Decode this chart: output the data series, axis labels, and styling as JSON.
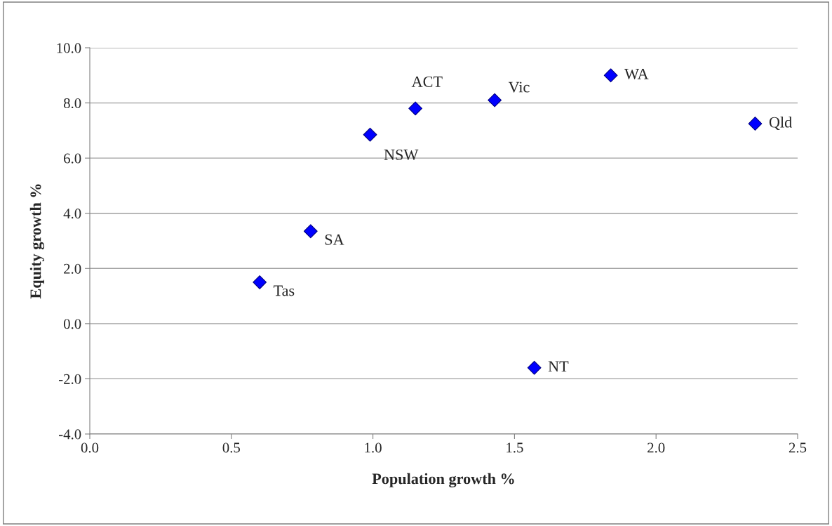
{
  "chart_data": {
    "type": "scatter",
    "xlabel": "Population growth %",
    "ylabel": "Equity growth %",
    "x": [
      0.6,
      0.78,
      0.99,
      1.15,
      1.43,
      1.84,
      2.35,
      1.57
    ],
    "series": [
      {
        "color": "#0000ff",
        "values": [
          1.5,
          3.35,
          6.85,
          7.8,
          8.1,
          9.0,
          7.25,
          -1.6
        ]
      }
    ],
    "annotations": [
      {
        "text": "Tas",
        "x": 0.6,
        "y": 1.5
      },
      {
        "text": "SA",
        "x": 0.78,
        "y": 3.35
      },
      {
        "text": "NSW",
        "x": 0.99,
        "y": 6.85
      },
      {
        "text": "ACT",
        "x": 1.15,
        "y": 7.8
      },
      {
        "text": "Vic",
        "x": 1.43,
        "y": 8.1
      },
      {
        "text": "WA",
        "x": 1.84,
        "y": 9.0
      },
      {
        "text": "Qld",
        "x": 2.35,
        "y": 7.25
      },
      {
        "text": "NT",
        "x": 1.57,
        "y": -1.6
      }
    ],
    "xlim": [
      0.0,
      2.5
    ],
    "xticks": [
      {
        "value": 0,
        "label": "0.0"
      },
      {
        "value": 0.5,
        "label": "0.5"
      },
      {
        "value": 1,
        "label": "1.0"
      },
      {
        "value": 1.5,
        "label": "1.5"
      },
      {
        "value": 2,
        "label": "2.0"
      },
      {
        "value": 2.5,
        "label": "2.5"
      }
    ],
    "ylim": [
      -4,
      10
    ],
    "yticks": [
      {
        "value": -4,
        "label": "-4.0"
      },
      {
        "value": -2,
        "label": "-2.0"
      },
      {
        "value": 0,
        "label": "0.0"
      },
      {
        "value": 2,
        "label": "2.0"
      },
      {
        "value": 4,
        "label": "4.0"
      },
      {
        "value": 6,
        "label": "6.0"
      },
      {
        "value": 8,
        "label": "8.0"
      },
      {
        "value": 10,
        "label": "10.0"
      }
    ],
    "grid": "y",
    "marker": "diamond"
  }
}
